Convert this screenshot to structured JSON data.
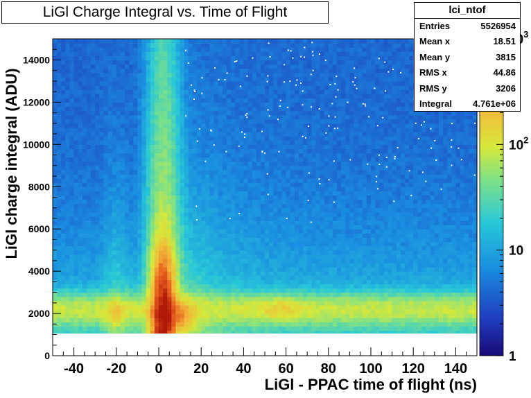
{
  "title": "LiGl Charge Integral vs. Time of Flight",
  "stats": {
    "name": "lci_ntof",
    "rows": [
      {
        "label": "Entries",
        "value": "5526954"
      },
      {
        "label": "Mean x",
        "value": "18.51"
      },
      {
        "label": "Mean y",
        "value": "3815"
      },
      {
        "label": "RMS x",
        "value": "44.86"
      },
      {
        "label": "RMS y",
        "value": "3206"
      },
      {
        "label": "Integral",
        "value": "4.761e+06"
      }
    ]
  },
  "chart_data": {
    "type": "heatmap",
    "title": "LiGl Charge Integral vs. Time of Flight",
    "xlabel": "LiGl - PPAC time of flight (ns)",
    "ylabel": "LiGl charge integral (ADU)",
    "xlim": [
      -50,
      150
    ],
    "ylim": [
      0,
      15000
    ],
    "x_ticks": [
      -40,
      -20,
      0,
      20,
      40,
      60,
      80,
      100,
      120,
      140
    ],
    "y_ticks": [
      0,
      2000,
      4000,
      6000,
      8000,
      10000,
      12000,
      14000
    ],
    "colorbar": {
      "scale": "log",
      "range": [
        1,
        1000
      ],
      "ticks": [
        {
          "value": 1,
          "label": "1"
        },
        {
          "value": 10,
          "label": "10"
        },
        {
          "value": 100,
          "label": "10",
          "sup": "2"
        },
        {
          "value": 1000,
          "label": "10",
          "sup": "3"
        }
      ]
    },
    "threshold_y": 1000,
    "features": [
      {
        "name": "prompt-peak",
        "x": 2,
        "y": 1800,
        "max_counts": 1000
      },
      {
        "name": "vertical-band",
        "x": 2,
        "y_range": [
          1000,
          15000
        ]
      },
      {
        "name": "side-band-left",
        "x": -20,
        "y": 2000
      },
      {
        "name": "side-band-right",
        "x": 8,
        "y": 2000
      },
      {
        "name": "horizontal-band",
        "y": 2200,
        "x_range": [
          -50,
          150
        ]
      },
      {
        "name": "side-peak",
        "x": 57,
        "y": 2200
      }
    ]
  }
}
